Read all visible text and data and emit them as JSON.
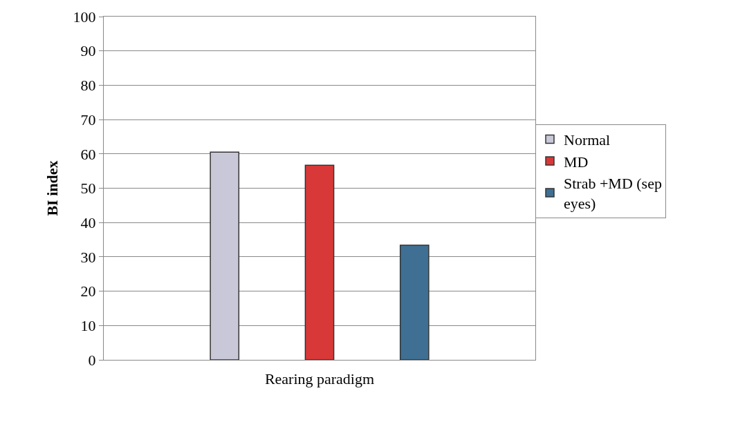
{
  "chart_data": {
    "type": "bar",
    "xlabel": "Rearing paradigm",
    "ylabel": "BI index",
    "categories": [
      null
    ],
    "series": [
      {
        "name": "Normal",
        "color": "#c8c8d8",
        "values": [
          60.5
        ]
      },
      {
        "name": "MD",
        "color": "#d83838",
        "values": [
          56.7
        ]
      },
      {
        "name": "Strab +MD (sep eyes)",
        "color": "#3f6f93",
        "values": [
          33.4
        ]
      }
    ],
    "ylim": [
      0,
      100
    ],
    "yticks": [
      0,
      10,
      20,
      30,
      40,
      50,
      60,
      70,
      80,
      90,
      100
    ],
    "grid": "y",
    "legend": "right"
  }
}
